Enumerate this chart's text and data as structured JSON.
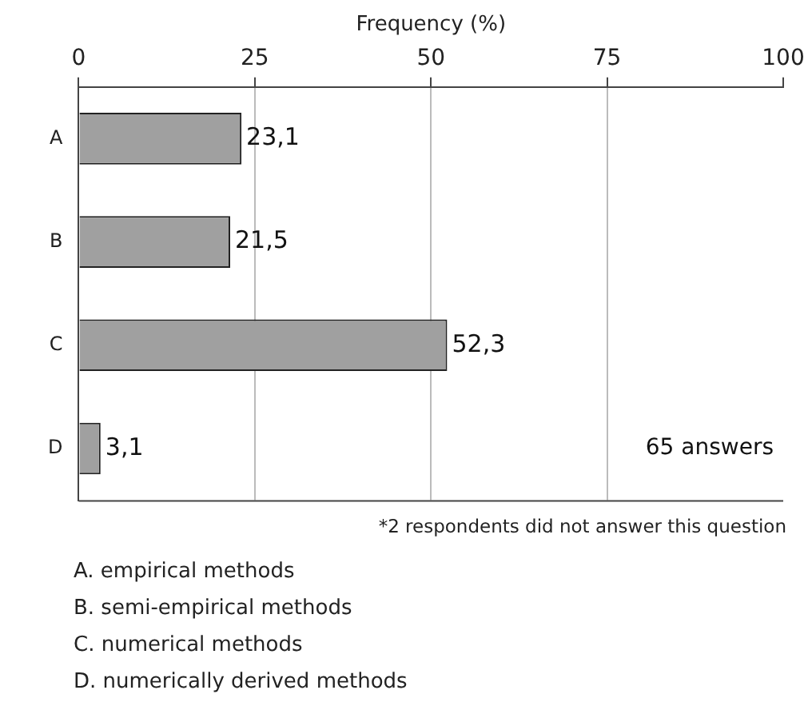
{
  "chart_data": {
    "type": "bar",
    "orientation": "horizontal",
    "xlabel": "Frequency (%)",
    "categories": [
      "A",
      "B",
      "C",
      "D"
    ],
    "values": [
      23.1,
      21.5,
      52.3,
      3.1
    ],
    "value_labels": [
      "23,1",
      "21,5",
      "52,3",
      "3,1"
    ],
    "color": "#a0a0a0",
    "xlim": [
      0,
      100
    ],
    "xticks": [
      0,
      25,
      50,
      75,
      100
    ],
    "grid": "x",
    "legend": false,
    "annotations": [
      "65 answers",
      "*2 respondents did not answer this question",
      "A.  empirical methods",
      "B.  semi-empirical methods",
      "C.  numerical methods",
      "D.  numerically derived methods"
    ]
  }
}
